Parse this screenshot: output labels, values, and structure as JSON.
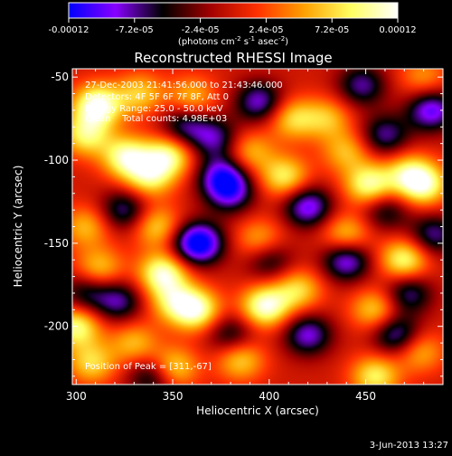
{
  "chart_data": {
    "type": "heatmap",
    "title": "Reconstructed RHESSI Image",
    "xlabel": "Heliocentric X (arcsec)",
    "ylabel": "Heliocentric Y (arcsec)",
    "xlim": [
      298,
      490
    ],
    "ylim": [
      -235,
      -45
    ],
    "xticks": [
      300,
      350,
      400,
      450
    ],
    "yticks": [
      -50,
      -100,
      -150,
      -200
    ],
    "colorbar": {
      "min": -0.00012,
      "max": 0.00012,
      "tick_labels": [
        "-0.00012",
        "-7.2e-05",
        "-2.4e-05",
        "2.4e-05",
        "7.2e-05",
        "0.00012"
      ],
      "unit_label_base": "(photons cm",
      "unit_sup1": "-2",
      "unit_mid": " s",
      "unit_sup2": "-1",
      "unit_end": " asec",
      "unit_sup3": "-2",
      "unit_close": ")",
      "colors": [
        "#0000ff",
        "#8800ff",
        "#000000",
        "#a00000",
        "#ff3000",
        "#ffa000",
        "#ffff60",
        "#ffffff"
      ]
    },
    "info_lines": [
      "27-Dec-2003 21:41:56.000 to 21:43:46.000",
      "Detectors: 4F 5F 6F 7F 8F, Att 0",
      "Energy Range: 25.0 - 50.0 keV",
      "Clean    Total counts: 4.98E+03"
    ],
    "peak_label": "Position of Peak = [311,-67]",
    "peak_position": [
      311,
      -67
    ],
    "total_counts": 4980,
    "energy_range_kev": [
      25.0,
      50.0
    ],
    "blobs": [
      {
        "x": 311,
        "y": -67,
        "v": 1.0
      },
      {
        "x": 305,
        "y": -85,
        "v": 0.7
      },
      {
        "x": 326,
        "y": -98,
        "v": 0.85
      },
      {
        "x": 338,
        "y": -110,
        "v": 0.7
      },
      {
        "x": 348,
        "y": -97,
        "v": 0.8
      },
      {
        "x": 360,
        "y": -62,
        "v": 0.5
      },
      {
        "x": 333,
        "y": -60,
        "v": 0.55
      },
      {
        "x": 342,
        "y": -140,
        "v": 0.6
      },
      {
        "x": 305,
        "y": -140,
        "v": 0.5
      },
      {
        "x": 312,
        "y": -165,
        "v": 0.55
      },
      {
        "x": 345,
        "y": -168,
        "v": 0.9
      },
      {
        "x": 350,
        "y": -185,
        "v": 0.55
      },
      {
        "x": 362,
        "y": -190,
        "v": 0.9
      },
      {
        "x": 300,
        "y": -200,
        "v": 0.8
      },
      {
        "x": 308,
        "y": -222,
        "v": 0.6
      },
      {
        "x": 330,
        "y": -210,
        "v": 0.5
      },
      {
        "x": 350,
        "y": -225,
        "v": 0.7
      },
      {
        "x": 385,
        "y": -220,
        "v": 0.6
      },
      {
        "x": 398,
        "y": -188,
        "v": 0.95
      },
      {
        "x": 415,
        "y": -178,
        "v": 0.6
      },
      {
        "x": 395,
        "y": -148,
        "v": 0.5
      },
      {
        "x": 408,
        "y": -110,
        "v": 0.7
      },
      {
        "x": 390,
        "y": -95,
        "v": 0.5
      },
      {
        "x": 412,
        "y": -75,
        "v": 0.6
      },
      {
        "x": 430,
        "y": -75,
        "v": 0.5
      },
      {
        "x": 440,
        "y": -95,
        "v": 0.5
      },
      {
        "x": 452,
        "y": -115,
        "v": 0.85
      },
      {
        "x": 472,
        "y": -108,
        "v": 0.6
      },
      {
        "x": 480,
        "y": -115,
        "v": 0.8
      },
      {
        "x": 440,
        "y": -145,
        "v": 0.6
      },
      {
        "x": 470,
        "y": -160,
        "v": 0.8
      },
      {
        "x": 455,
        "y": -190,
        "v": 0.6
      },
      {
        "x": 455,
        "y": -230,
        "v": 0.7
      },
      {
        "x": 478,
        "y": -215,
        "v": 0.5
      },
      {
        "x": 480,
        "y": -50,
        "v": 0.4
      },
      {
        "x": 356,
        "y": -80,
        "v": -0.6
      },
      {
        "x": 372,
        "y": -87,
        "v": -0.6
      },
      {
        "x": 395,
        "y": -65,
        "v": -0.7
      },
      {
        "x": 400,
        "y": -160,
        "v": -0.5
      },
      {
        "x": 325,
        "y": -130,
        "v": -0.6
      },
      {
        "x": 365,
        "y": -150,
        "v": -0.7
      },
      {
        "x": 322,
        "y": -185,
        "v": -0.6
      },
      {
        "x": 360,
        "y": -150,
        "v": -0.5
      },
      {
        "x": 340,
        "y": -230,
        "v": -0.6
      },
      {
        "x": 376,
        "y": -110,
        "v": -0.8
      },
      {
        "x": 380,
        "y": -120,
        "v": -0.6
      },
      {
        "x": 420,
        "y": -128,
        "v": -0.8
      },
      {
        "x": 420,
        "y": -205,
        "v": -0.7
      },
      {
        "x": 440,
        "y": -160,
        "v": -0.8
      },
      {
        "x": 460,
        "y": -130,
        "v": -0.5
      },
      {
        "x": 466,
        "y": -205,
        "v": -0.7
      },
      {
        "x": 472,
        "y": -180,
        "v": -0.6
      },
      {
        "x": 485,
        "y": -145,
        "v": -0.6
      },
      {
        "x": 484,
        "y": -70,
        "v": -0.8
      },
      {
        "x": 448,
        "y": -55,
        "v": -0.6
      },
      {
        "x": 460,
        "y": -85,
        "v": -0.6
      },
      {
        "x": 380,
        "y": -205,
        "v": -0.5
      },
      {
        "x": 305,
        "y": -180,
        "v": -0.5
      }
    ]
  },
  "footer": {
    "timestamp": "3-Jun-2013 13:27"
  }
}
